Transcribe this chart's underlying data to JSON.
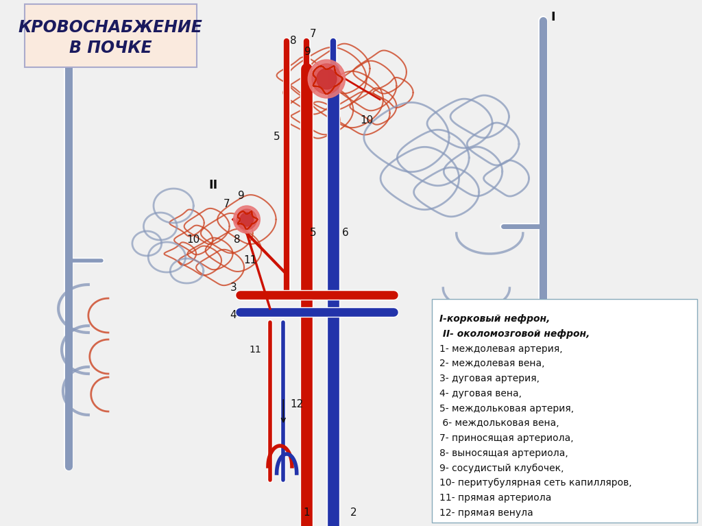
{
  "title_text": "КРОВОСНАБЖЕНИЕ\nВ ПОЧКЕ",
  "title_box_bg": "#faeade",
  "title_box_edge": "#aaaacc",
  "title_color": "#1a1a5e",
  "title_fontsize": 17,
  "bg_color": "#f0f0f0",
  "legend_lines": [
    "I-корковый нефрон,",
    " II- околомозговой нефрон,",
    "1- междолевая артерия,",
    "2- междолевая вена,",
    "3- дуговая артерия,",
    "4- дуговая вена,",
    "5- междольковая артерия,",
    " 6- междольковая вена,",
    "7- приносящая артериола,",
    "8- выносящая артериола,",
    "9- сосудистый клубочек,",
    "10- перитубулярная сеть капилляров,",
    "11- прямая артериола",
    "12- прямая венула"
  ],
  "legend_bold_lines": [
    0,
    1
  ],
  "legend_box_bg": "#ffffff",
  "legend_box_edge": "#88aabb",
  "legend_fontsize": 10,
  "artery_color": "#cc1100",
  "vein_color": "#2233aa",
  "vessel_gray": "#8899bb",
  "tubule_red": "#cc4422",
  "numbers_color": "#111111",
  "num_fontsize": 11
}
